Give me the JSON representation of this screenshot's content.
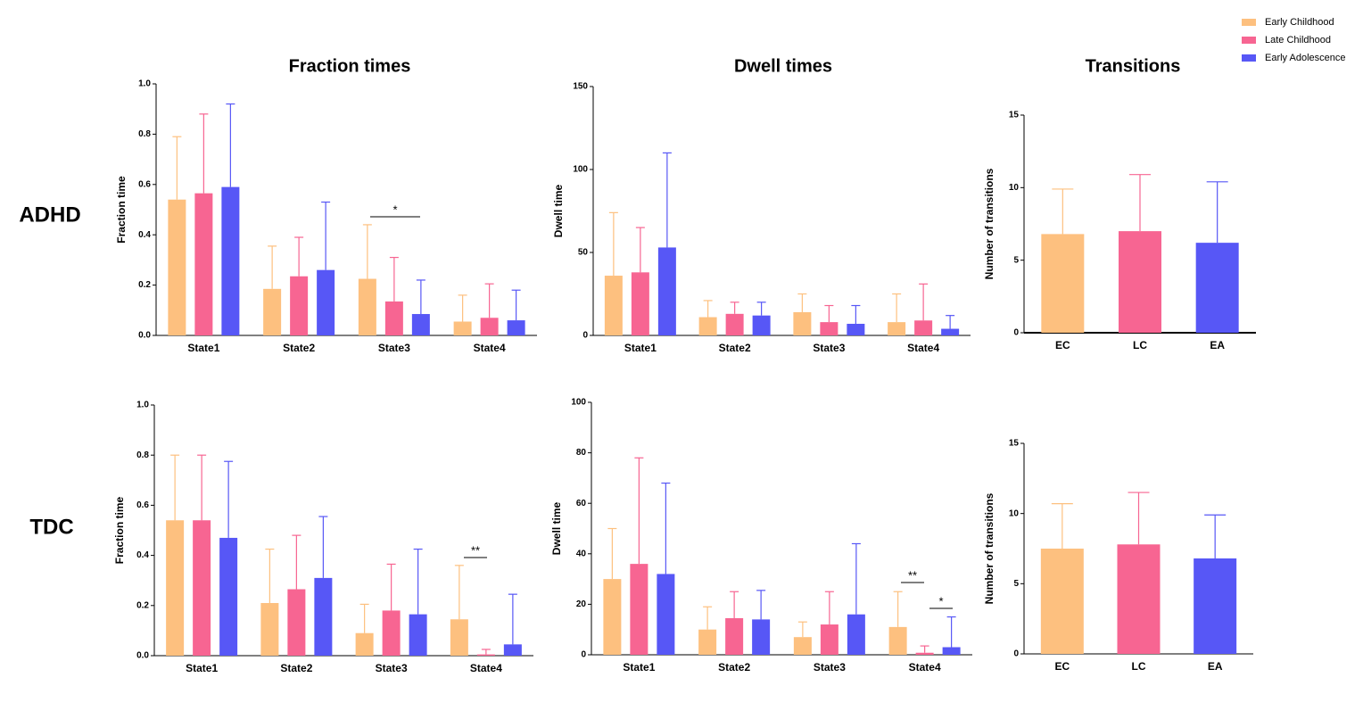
{
  "row_labels": [
    "ADHD",
    "TDC"
  ],
  "chart_data": [
    {
      "type": "bar",
      "title": "Fraction times",
      "ylabel": "Fraction time",
      "categories": [
        "State1",
        "State2",
        "State3",
        "State4"
      ],
      "series": [
        {
          "name": "Early Childhood",
          "color": "#fdc07f",
          "values": [
            0.54,
            0.185,
            0.225,
            0.055
          ],
          "errors": [
            0.25,
            0.17,
            0.215,
            0.105
          ]
        },
        {
          "name": "Late Childhood",
          "color": "#f76592",
          "values": [
            0.565,
            0.235,
            0.135,
            0.07
          ],
          "errors": [
            0.315,
            0.155,
            0.175,
            0.135
          ]
        },
        {
          "name": "Early Adolescence",
          "color": "#5757f6",
          "values": [
            0.59,
            0.26,
            0.085,
            0.06
          ],
          "errors": [
            0.33,
            0.27,
            0.135,
            0.12
          ]
        }
      ],
      "ylim": [
        0,
        1
      ],
      "yticks": [
        {
          "value": 0,
          "label": "0.0"
        },
        0.2,
        0.4,
        0.6,
        0.8,
        {
          "value": 1,
          "label": "1.0"
        }
      ],
      "annotations": [
        "*"
      ]
    },
    {
      "type": "bar",
      "title": "Dwell times",
      "ylabel": "Dwell time",
      "categories": [
        "State1",
        "State2",
        "State3",
        "State4"
      ],
      "series": [
        {
          "color": "#fdc07f",
          "values": [
            36,
            11,
            14,
            8
          ],
          "errors": [
            38,
            10,
            11,
            17
          ]
        },
        {
          "color": "#f76592",
          "values": [
            38,
            13,
            8,
            9
          ],
          "errors": [
            27,
            7,
            10,
            22
          ]
        },
        {
          "color": "#5757f6",
          "values": [
            53,
            12,
            7,
            4
          ],
          "errors": [
            57,
            8,
            11,
            8
          ]
        }
      ],
      "ylim": [
        0,
        150
      ],
      "yticks": [
        0,
        50,
        100,
        150
      ]
    },
    {
      "type": "colorbar",
      "title": "Transitions",
      "ylabel": "Number of transitions",
      "categories": [
        "EC",
        "LC",
        "EA"
      ],
      "values": [
        6.8,
        7.0,
        6.2
      ],
      "errors": [
        3.1,
        3.9,
        4.2
      ],
      "colors": [
        "#fdc07f",
        "#f76592",
        "#5757f6"
      ],
      "ylim": [
        0,
        15
      ],
      "yticks": [
        0,
        5,
        10,
        15
      ]
    },
    {
      "type": "bar",
      "ylabel": "Fraction time",
      "categories": [
        "State1",
        "State2",
        "State3",
        "State4"
      ],
      "series": [
        {
          "color": "#fdc07f",
          "values": [
            0.54,
            0.21,
            0.09,
            0.145
          ],
          "errors": [
            0.26,
            0.215,
            0.115,
            0.215
          ]
        },
        {
          "color": "#f76592",
          "values": [
            0.54,
            0.265,
            0.18,
            0.005
          ],
          "errors": [
            0.26,
            0.215,
            0.185,
            0.02
          ]
        },
        {
          "color": "#5757f6",
          "values": [
            0.47,
            0.31,
            0.165,
            0.045
          ],
          "errors": [
            0.305,
            0.245,
            0.26,
            0.2
          ]
        }
      ],
      "ylim": [
        0,
        1
      ],
      "yticks": [
        {
          "value": 0,
          "label": "0.0"
        },
        0.2,
        0.4,
        0.6,
        0.8,
        {
          "value": 1,
          "label": "1.0"
        }
      ],
      "annotations": [
        "**"
      ]
    },
    {
      "type": "bar",
      "ylabel": "Dwell time",
      "categories": [
        "State1",
        "State2",
        "State3",
        "State4"
      ],
      "series": [
        {
          "color": "#fdc07f",
          "values": [
            30,
            10,
            7,
            11
          ],
          "errors": [
            20,
            9,
            6,
            14
          ]
        },
        {
          "color": "#f76592",
          "values": [
            36,
            14.5,
            12,
            0.8
          ],
          "errors": [
            42,
            10.5,
            13,
            2.7
          ]
        },
        {
          "color": "#5757f6",
          "values": [
            32,
            14,
            16,
            3
          ],
          "errors": [
            36,
            11.5,
            28,
            12
          ]
        }
      ],
      "ylim": [
        0,
        100
      ],
      "yticks": [
        0,
        20,
        40,
        60,
        80,
        100
      ],
      "annotations": [
        "**",
        "*"
      ]
    },
    {
      "type": "colorbar",
      "ylabel": "Number of transitions",
      "categories": [
        "EC",
        "LC",
        "EA"
      ],
      "values": [
        7.5,
        7.8,
        6.8
      ],
      "errors": [
        3.2,
        3.7,
        3.1
      ],
      "colors": [
        "#fdc07f",
        "#f76592",
        "#5757f6"
      ],
      "ylim": [
        0,
        15
      ],
      "yticks": [
        0,
        5,
        10,
        15
      ]
    }
  ]
}
